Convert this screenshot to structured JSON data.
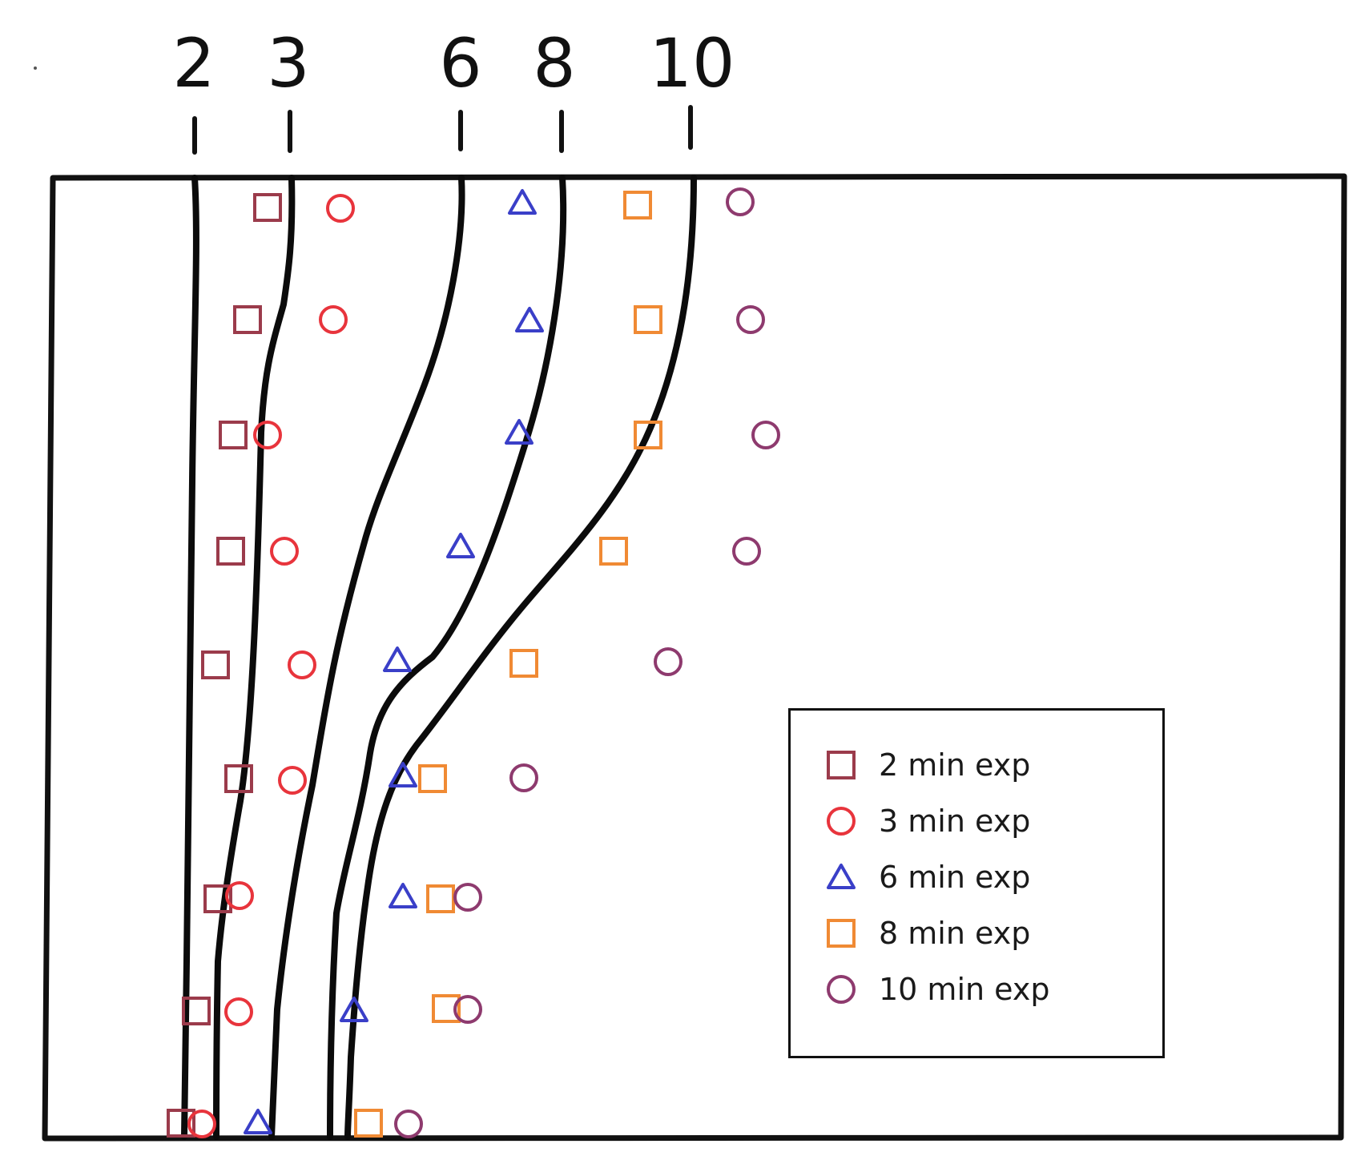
{
  "curves": [
    {
      "label": "2"
    },
    {
      "label": "3"
    },
    {
      "label": "6"
    },
    {
      "label": "8"
    },
    {
      "label": "10"
    }
  ],
  "legend": {
    "items": [
      {
        "label": "2 min exp",
        "marker": "square",
        "color": "#9b3b4b"
      },
      {
        "label": "3 min exp",
        "marker": "circle",
        "color": "#e8343c"
      },
      {
        "label": "6 min exp",
        "marker": "triangle",
        "color": "#3a3fc8"
      },
      {
        "label": "8 min exp",
        "marker": "square",
        "color": "#f08a34"
      },
      {
        "label": "10 min exp",
        "marker": "circle",
        "color": "#8e3a6e"
      }
    ]
  }
}
